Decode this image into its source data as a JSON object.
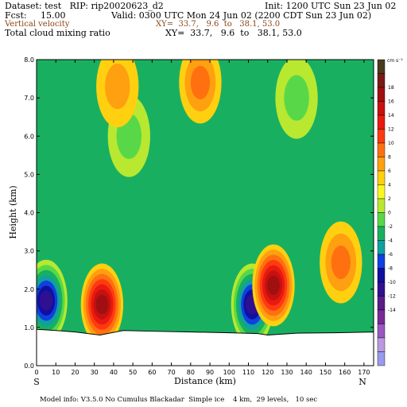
{
  "header": {
    "line1_left": "Dataset: test   RIP: rip20020623_d2",
    "line1_right": "Init: 1200 UTC Sun 23 Jun 02",
    "line2_left": "Fcst:     15.00",
    "line2_right": "Valid: 0300 UTC Mon 24 Jun 02 (2200 CDT Sun 23 Jun 02)",
    "field1_name": "Vertical velocity",
    "field1_xy": "XY=  33.7,   9.6  to   38.1, 53.0",
    "field2_name": "Total cloud mixing ratio",
    "field2_xy": "XY=  33.7,   9.6  to   38.1, 53.0"
  },
  "footer": "Model info: V3.5.0 No Cumulus Blackadar  Simple ice    4 km,  29 levels,   10 sec",
  "chart_data": {
    "type": "heatmap",
    "title": "",
    "xlabel": "Distance  (km)",
    "ylabel": "Height  (km)",
    "xlim": [
      0,
      175
    ],
    "ylim": [
      0,
      8
    ],
    "x_ticks": [
      0,
      10,
      20,
      30,
      40,
      50,
      60,
      70,
      80,
      90,
      100,
      110,
      120,
      130,
      140,
      150,
      160,
      170
    ],
    "y_ticks": [
      "0.0",
      "1.0",
      "2.0",
      "3.0",
      "4.0",
      "5.0",
      "6.0",
      "7.0",
      "8.0"
    ],
    "x_end_labels": {
      "left": "S",
      "right": "N"
    },
    "colorbar": {
      "unit": "cm s⁻¹",
      "levels": [
        18,
        16,
        14,
        12,
        10,
        8,
        6,
        4,
        2,
        0,
        -2,
        -4,
        -6,
        -8,
        -10,
        -12,
        -14
      ],
      "colors": [
        "#4b3a1e",
        "#7a1a14",
        "#a01010",
        "#c81010",
        "#e81a10",
        "#ff3a10",
        "#ff7010",
        "#ffa010",
        "#ffd010",
        "#f8f820",
        "#b8e830",
        "#58d848",
        "#18b060",
        "#10a0a0",
        "#1040e0",
        "#1010a0",
        "#301090",
        "#5a1c88",
        "#7a2a98",
        "#9a58c0",
        "#bb99e0",
        "#9999ee"
      ]
    },
    "terrain_km": [
      [
        0,
        0.95
      ],
      [
        10,
        0.92
      ],
      [
        20,
        0.88
      ],
      [
        33,
        0.8
      ],
      [
        45,
        0.92
      ],
      [
        60,
        0.9
      ],
      [
        80,
        0.88
      ],
      [
        100,
        0.86
      ],
      [
        115,
        0.84
      ],
      [
        120,
        0.8
      ],
      [
        135,
        0.85
      ],
      [
        155,
        0.86
      ],
      [
        175,
        0.88
      ]
    ],
    "updrafts": [
      {
        "x": 34,
        "z": 1.6,
        "peak": 14
      },
      {
        "x": 123,
        "z": 2.1,
        "peak": 14
      },
      {
        "x": 158,
        "z": 2.7,
        "peak": 6
      },
      {
        "x": 42,
        "z": 7.3,
        "peak": 4
      },
      {
        "x": 85,
        "z": 7.4,
        "peak": 6
      }
    ],
    "downdrafts": [
      {
        "x": 5,
        "z": 1.7,
        "peak": -14
      },
      {
        "x": 112,
        "z": 1.6,
        "peak": -14
      },
      {
        "x": 48,
        "z": 6.0,
        "peak": -4
      },
      {
        "x": 135,
        "z": 7.0,
        "peak": -4
      }
    ]
  }
}
